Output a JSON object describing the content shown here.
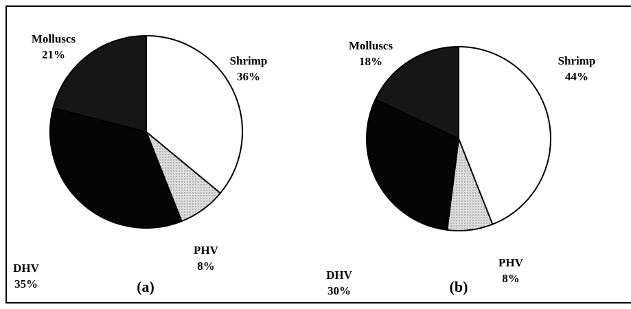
{
  "chart_data": [
    {
      "type": "pie",
      "caption": "(a)",
      "categories": [
        "Shrimp",
        "PHV",
        "DHV",
        "Molluscs"
      ],
      "values": [
        36,
        8,
        35,
        21
      ],
      "value_labels": [
        "36%",
        "8%",
        "35%",
        "21%"
      ],
      "colors": [
        "#ffffff",
        "#dcdcdc",
        "#050505",
        "#161616"
      ]
    },
    {
      "type": "pie",
      "caption": "(b)",
      "categories": [
        "Shrimp",
        "PHV",
        "DHV",
        "Molluscs"
      ],
      "values": [
        44,
        8,
        30,
        18
      ],
      "value_labels": [
        "44%",
        "8%",
        "30%",
        "18%"
      ],
      "colors": [
        "#ffffff",
        "#dcdcdc",
        "#050505",
        "#161616"
      ]
    }
  ]
}
